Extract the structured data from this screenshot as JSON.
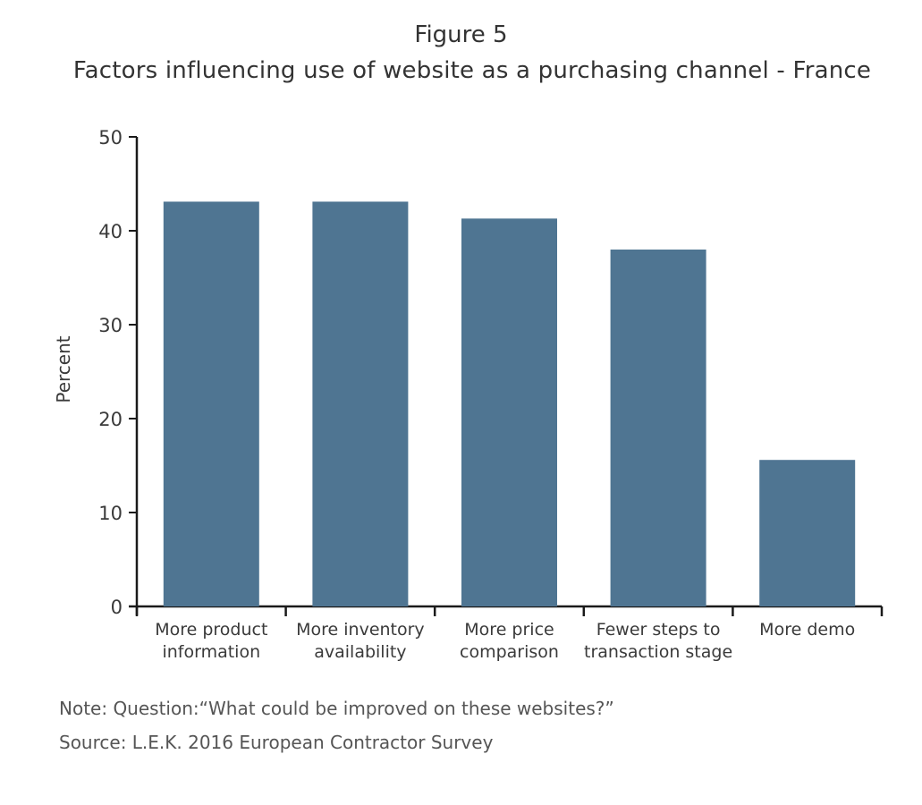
{
  "figure_label": "Figure 5",
  "note": "Note: Question:“What could be improved on these websites?”",
  "source": "Source: L.E.K. 2016 European Contractor Survey",
  "colors": {
    "bar": "#4f7592",
    "axis": "#1a1a1a",
    "text": "#3a3a3a"
  },
  "chart_data": {
    "type": "bar",
    "title": "Factors influencing use of website as a purchasing channel - France",
    "xlabel": "",
    "ylabel": "Percent",
    "ylim": [
      0,
      50
    ],
    "yticks": [
      "0",
      "10",
      "20",
      "30",
      "40",
      "50"
    ],
    "grid": false,
    "categories": [
      [
        "More product",
        "information"
      ],
      [
        "More inventory",
        "availability"
      ],
      [
        "More price",
        "comparison"
      ],
      [
        "Fewer steps to",
        "transaction stage"
      ],
      [
        "More demo"
      ]
    ],
    "values": [
      43.1,
      43.1,
      41.3,
      38.0,
      15.6
    ]
  }
}
